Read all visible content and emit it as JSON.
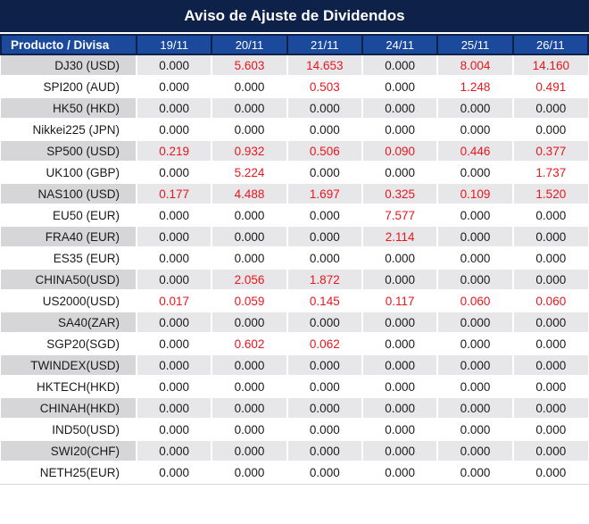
{
  "title": "Aviso de Ajuste de Dividendos",
  "chart_data": {
    "type": "table",
    "title": "Aviso de Ajuste de Dividendos",
    "columns": [
      "Producto / Divisa",
      "19/11",
      "20/11",
      "21/11",
      "24/11",
      "25/11",
      "26/11"
    ],
    "rows": [
      {
        "product": "DJ30 (USD)",
        "values": [
          "0.000",
          "5.603",
          "14.653",
          "0.000",
          "8.004",
          "14.160"
        ],
        "red": [
          0,
          1,
          1,
          0,
          1,
          1
        ]
      },
      {
        "product": "SPI200 (AUD)",
        "values": [
          "0.000",
          "0.000",
          "0.503",
          "0.000",
          "1.248",
          "0.491"
        ],
        "red": [
          0,
          0,
          1,
          0,
          1,
          1
        ]
      },
      {
        "product": "HK50 (HKD)",
        "values": [
          "0.000",
          "0.000",
          "0.000",
          "0.000",
          "0.000",
          "0.000"
        ],
        "red": [
          0,
          0,
          0,
          0,
          0,
          0
        ]
      },
      {
        "product": "Nikkei225 (JPN)",
        "values": [
          "0.000",
          "0.000",
          "0.000",
          "0.000",
          "0.000",
          "0.000"
        ],
        "red": [
          0,
          0,
          0,
          0,
          0,
          0
        ]
      },
      {
        "product": "SP500 (USD)",
        "values": [
          "0.219",
          "0.932",
          "0.506",
          "0.090",
          "0.446",
          "0.377"
        ],
        "red": [
          1,
          1,
          1,
          1,
          1,
          1
        ]
      },
      {
        "product": "UK100 (GBP)",
        "values": [
          "0.000",
          "5.224",
          "0.000",
          "0.000",
          "0.000",
          "1.737"
        ],
        "red": [
          0,
          1,
          0,
          0,
          0,
          1
        ]
      },
      {
        "product": "NAS100 (USD)",
        "values": [
          "0.177",
          "4.488",
          "1.697",
          "0.325",
          "0.109",
          "1.520"
        ],
        "red": [
          1,
          1,
          1,
          1,
          1,
          1
        ]
      },
      {
        "product": "EU50 (EUR)",
        "values": [
          "0.000",
          "0.000",
          "0.000",
          "7.577",
          "0.000",
          "0.000"
        ],
        "red": [
          0,
          0,
          0,
          1,
          0,
          0
        ]
      },
      {
        "product": "FRA40 (EUR)",
        "values": [
          "0.000",
          "0.000",
          "0.000",
          "2.114",
          "0.000",
          "0.000"
        ],
        "red": [
          0,
          0,
          0,
          1,
          0,
          0
        ]
      },
      {
        "product": "ES35 (EUR)",
        "values": [
          "0.000",
          "0.000",
          "0.000",
          "0.000",
          "0.000",
          "0.000"
        ],
        "red": [
          0,
          0,
          0,
          0,
          0,
          0
        ]
      },
      {
        "product": "CHINA50(USD)",
        "values": [
          "0.000",
          "2.056",
          "1.872",
          "0.000",
          "0.000",
          "0.000"
        ],
        "red": [
          0,
          1,
          1,
          0,
          0,
          0
        ]
      },
      {
        "product": "US2000(USD)",
        "values": [
          "0.017",
          "0.059",
          "0.145",
          "0.117",
          "0.060",
          "0.060"
        ],
        "red": [
          1,
          1,
          1,
          1,
          1,
          1
        ]
      },
      {
        "product": "SA40(ZAR)",
        "values": [
          "0.000",
          "0.000",
          "0.000",
          "0.000",
          "0.000",
          "0.000"
        ],
        "red": [
          0,
          0,
          0,
          0,
          0,
          0
        ]
      },
      {
        "product": "SGP20(SGD)",
        "values": [
          "0.000",
          "0.602",
          "0.062",
          "0.000",
          "0.000",
          "0.000"
        ],
        "red": [
          0,
          1,
          1,
          0,
          0,
          0
        ]
      },
      {
        "product": "TWINDEX(USD)",
        "values": [
          "0.000",
          "0.000",
          "0.000",
          "0.000",
          "0.000",
          "0.000"
        ],
        "red": [
          0,
          0,
          0,
          0,
          0,
          0
        ]
      },
      {
        "product": "HKTECH(HKD)",
        "values": [
          "0.000",
          "0.000",
          "0.000",
          "0.000",
          "0.000",
          "0.000"
        ],
        "red": [
          0,
          0,
          0,
          0,
          0,
          0
        ]
      },
      {
        "product": "CHINAH(HKD)",
        "values": [
          "0.000",
          "0.000",
          "0.000",
          "0.000",
          "0.000",
          "0.000"
        ],
        "red": [
          0,
          0,
          0,
          0,
          0,
          0
        ]
      },
      {
        "product": "IND50(USD)",
        "values": [
          "0.000",
          "0.000",
          "0.000",
          "0.000",
          "0.000",
          "0.000"
        ],
        "red": [
          0,
          0,
          0,
          0,
          0,
          0
        ]
      },
      {
        "product": "SWI20(CHF)",
        "values": [
          "0.000",
          "0.000",
          "0.000",
          "0.000",
          "0.000",
          "0.000"
        ],
        "red": [
          0,
          0,
          0,
          0,
          0,
          0
        ]
      },
      {
        "product": "NETH25(EUR)",
        "values": [
          "0.000",
          "0.000",
          "0.000",
          "0.000",
          "0.000",
          "0.000"
        ],
        "red": [
          0,
          0,
          0,
          0,
          0,
          0
        ]
      }
    ]
  },
  "colors": {
    "title_bg": "#0D2149",
    "header_bg": "#1B4A9D",
    "header_divider": "#0D2149",
    "red_value": "#E8161D",
    "black_value": "#1A1A1A",
    "row_gray_label": "#D6D6D8",
    "row_gray_value": "#E7E7E9",
    "row_white": "#FFFFFF"
  }
}
